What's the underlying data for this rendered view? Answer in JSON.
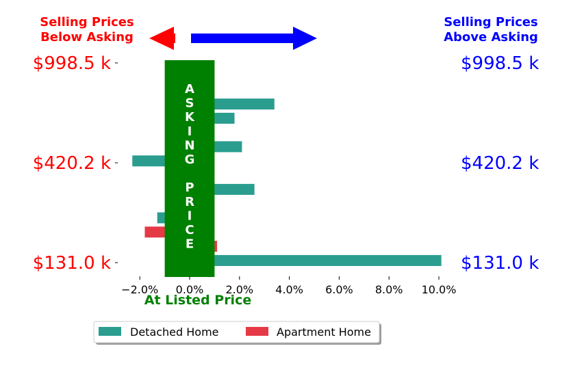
{
  "header": {
    "left_line1": "Selling Prices",
    "left_line2": "Below Asking",
    "right_line1": "Selling Prices",
    "right_line2": "Above Asking"
  },
  "colors": {
    "below": "#ff0000",
    "above": "#0000ff",
    "asking": "#008000",
    "detached": "#2a9d8f",
    "apartment": "#e63946"
  },
  "asking_band": {
    "letters": [
      "A",
      "S",
      "K",
      "I",
      "N",
      "G",
      "",
      "P",
      "R",
      "I",
      "C",
      "E"
    ],
    "range": [
      -1.0,
      1.0
    ]
  },
  "chart_data": {
    "type": "bar",
    "orientation": "horizontal",
    "xlabel": "At Listed Price",
    "xlim": [
      -2.7,
      10.3
    ],
    "xticks": [
      -2.0,
      0.0,
      2.0,
      4.0,
      6.0,
      8.0,
      10.0
    ],
    "xtick_labels": [
      "−2.0%",
      "0.0%",
      "2.0%",
      "4.0%",
      "6.0%",
      "8.0%",
      "10.0%"
    ],
    "ytick_labels": [
      "$998.5 k",
      "$420.2 k",
      "$131.0 k"
    ],
    "grid": false,
    "legend_placement": "bottom-center",
    "series": [
      {
        "name": "Detached Home",
        "color": "#2a9d8f",
        "values": [
          0.8,
          0.8,
          3.4,
          1.8,
          0.8,
          2.1,
          -2.3,
          0.8,
          2.6,
          0.8,
          -1.3,
          null,
          null,
          10.1
        ]
      },
      {
        "name": "Apartment Home",
        "color": "#e63946",
        "values": [
          null,
          null,
          null,
          null,
          null,
          null,
          null,
          null,
          null,
          null,
          null,
          -1.8,
          1.1,
          null
        ]
      }
    ]
  }
}
